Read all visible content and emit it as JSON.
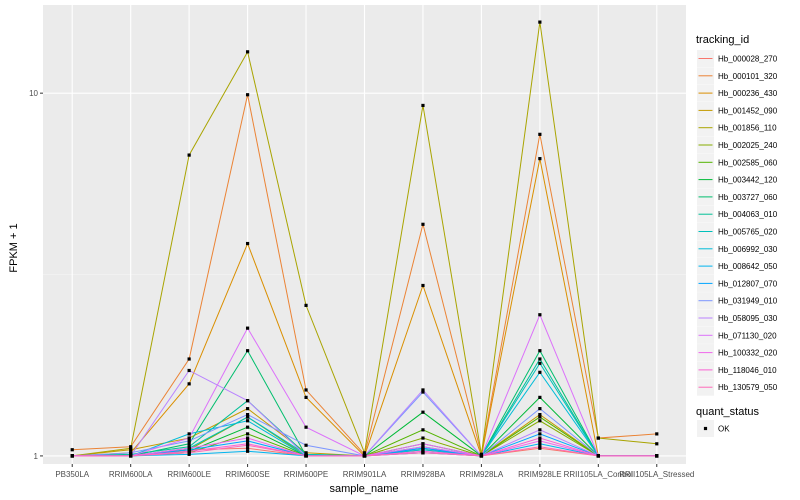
{
  "chart_data": {
    "type": "line",
    "xlabel": "sample_name",
    "ylabel": "FPKM + 1",
    "y_scale": "log10",
    "ylim": [
      0.95,
      17.5
    ],
    "y_ticks": [
      1,
      10
    ],
    "y_tick_labels": [
      "1",
      "10"
    ],
    "grid": true,
    "legend_placement": "right",
    "categories": [
      "PB350LA",
      "RRIM600LA",
      "RRIM600LE",
      "RRIM600SE",
      "RRIM600PE",
      "RRIM901LA",
      "RRIM928BA",
      "RRIM928LA",
      "RRIM928LE",
      "RRII105LA_Control",
      "RRII105LA_Stressed"
    ],
    "legend_title": "tracking_id",
    "series": [
      {
        "name": "Hb_000028_270",
        "color": "#F8766D",
        "values": [
          1.0,
          1.0,
          1.04,
          1.05,
          1.0,
          1.0,
          1.02,
          1.0,
          1.05,
          1.0,
          1.0
        ]
      },
      {
        "name": "Hb_000101_320",
        "color": "#EB8335",
        "values": [
          1.04,
          1.06,
          1.85,
          9.9,
          1.52,
          1.01,
          4.35,
          1.01,
          7.7,
          1.12,
          1.15
        ]
      },
      {
        "name": "Hb_000236_430",
        "color": "#DA8F00",
        "values": [
          1.0,
          1.02,
          1.58,
          3.85,
          1.45,
          1.0,
          2.95,
          1.0,
          6.6,
          1.0,
          1.0
        ]
      },
      {
        "name": "Hb_001452_090",
        "color": "#C49A00",
        "values": [
          1.0,
          1.04,
          1.12,
          1.35,
          1.02,
          1.0,
          1.04,
          1.0,
          1.3,
          1.0,
          1.0
        ]
      },
      {
        "name": "Hb_001856_110",
        "color": "#A9A400",
        "values": [
          1.0,
          1.05,
          6.75,
          13.0,
          2.6,
          1.02,
          9.25,
          1.01,
          15.7,
          1.12,
          1.08
        ]
      },
      {
        "name": "Hb_002025_240",
        "color": "#86AC00",
        "values": [
          1.0,
          1.0,
          1.04,
          1.28,
          1.0,
          1.0,
          1.12,
          1.0,
          1.25,
          1.0,
          1.0
        ]
      },
      {
        "name": "Hb_002585_060",
        "color": "#53B400",
        "values": [
          1.0,
          1.0,
          1.02,
          1.15,
          1.0,
          1.0,
          1.18,
          1.0,
          1.28,
          1.0,
          1.0
        ]
      },
      {
        "name": "Hb_003442_120",
        "color": "#00BA38",
        "values": [
          1.0,
          1.0,
          1.03,
          1.2,
          1.0,
          1.0,
          1.32,
          1.0,
          1.45,
          1.0,
          1.0
        ]
      },
      {
        "name": "Hb_003727_060",
        "color": "#00BE6D",
        "values": [
          1.0,
          1.0,
          1.08,
          1.95,
          1.0,
          1.0,
          1.08,
          1.0,
          1.95,
          1.0,
          1.0
        ]
      },
      {
        "name": "Hb_004063_010",
        "color": "#00C097",
        "values": [
          1.0,
          1.01,
          1.06,
          1.42,
          1.01,
          1.0,
          1.06,
          1.0,
          1.85,
          1.0,
          1.0
        ]
      },
      {
        "name": "Hb_005765_020",
        "color": "#00C0BB",
        "values": [
          1.0,
          1.0,
          1.05,
          1.28,
          1.01,
          1.0,
          1.05,
          1.0,
          1.8,
          1.0,
          1.0
        ]
      },
      {
        "name": "Hb_006992_030",
        "color": "#00BCD8",
        "values": [
          1.0,
          1.0,
          1.15,
          1.25,
          1.0,
          1.0,
          1.04,
          1.0,
          1.7,
          1.0,
          1.0
        ]
      },
      {
        "name": "Hb_008642_050",
        "color": "#00B4EF",
        "values": [
          1.0,
          1.0,
          1.01,
          1.03,
          1.0,
          1.0,
          1.02,
          1.0,
          1.08,
          1.0,
          1.0
        ]
      },
      {
        "name": "Hb_012807_070",
        "color": "#00A5FF",
        "values": [
          1.0,
          1.0,
          1.04,
          1.1,
          1.0,
          1.0,
          1.05,
          1.0,
          1.15,
          1.0,
          1.0
        ]
      },
      {
        "name": "Hb_031949_010",
        "color": "#7C96FF",
        "values": [
          1.0,
          1.02,
          1.1,
          1.3,
          1.07,
          1.0,
          1.5,
          1.0,
          1.35,
          1.0,
          1.0
        ]
      },
      {
        "name": "Hb_058095_030",
        "color": "#B983FF",
        "values": [
          1.0,
          1.0,
          1.72,
          1.42,
          1.0,
          1.0,
          1.52,
          1.0,
          1.18,
          1.0,
          1.0
        ]
      },
      {
        "name": "Hb_071130_020",
        "color": "#DC71FA",
        "values": [
          1.0,
          1.0,
          1.12,
          2.25,
          1.2,
          1.0,
          1.06,
          1.0,
          2.45,
          1.0,
          1.0
        ]
      },
      {
        "name": "Hb_100332_020",
        "color": "#EF67EB",
        "values": [
          1.0,
          1.0,
          1.05,
          1.12,
          1.0,
          1.0,
          1.08,
          1.0,
          1.1,
          1.0,
          1.0
        ]
      },
      {
        "name": "Hb_118046_010",
        "color": "#FA62D5",
        "values": [
          1.0,
          1.0,
          1.03,
          1.08,
          1.0,
          1.0,
          1.03,
          1.0,
          1.12,
          1.0,
          1.0
        ]
      },
      {
        "name": "Hb_130579_050",
        "color": "#FF6AB9",
        "values": [
          1.0,
          1.0,
          1.02,
          1.07,
          1.0,
          1.0,
          1.02,
          1.0,
          1.06,
          1.0,
          1.0
        ]
      }
    ],
    "shape_legend": {
      "title": "quant_status",
      "entries": [
        {
          "label": "OK",
          "symbol": "square"
        }
      ]
    }
  }
}
